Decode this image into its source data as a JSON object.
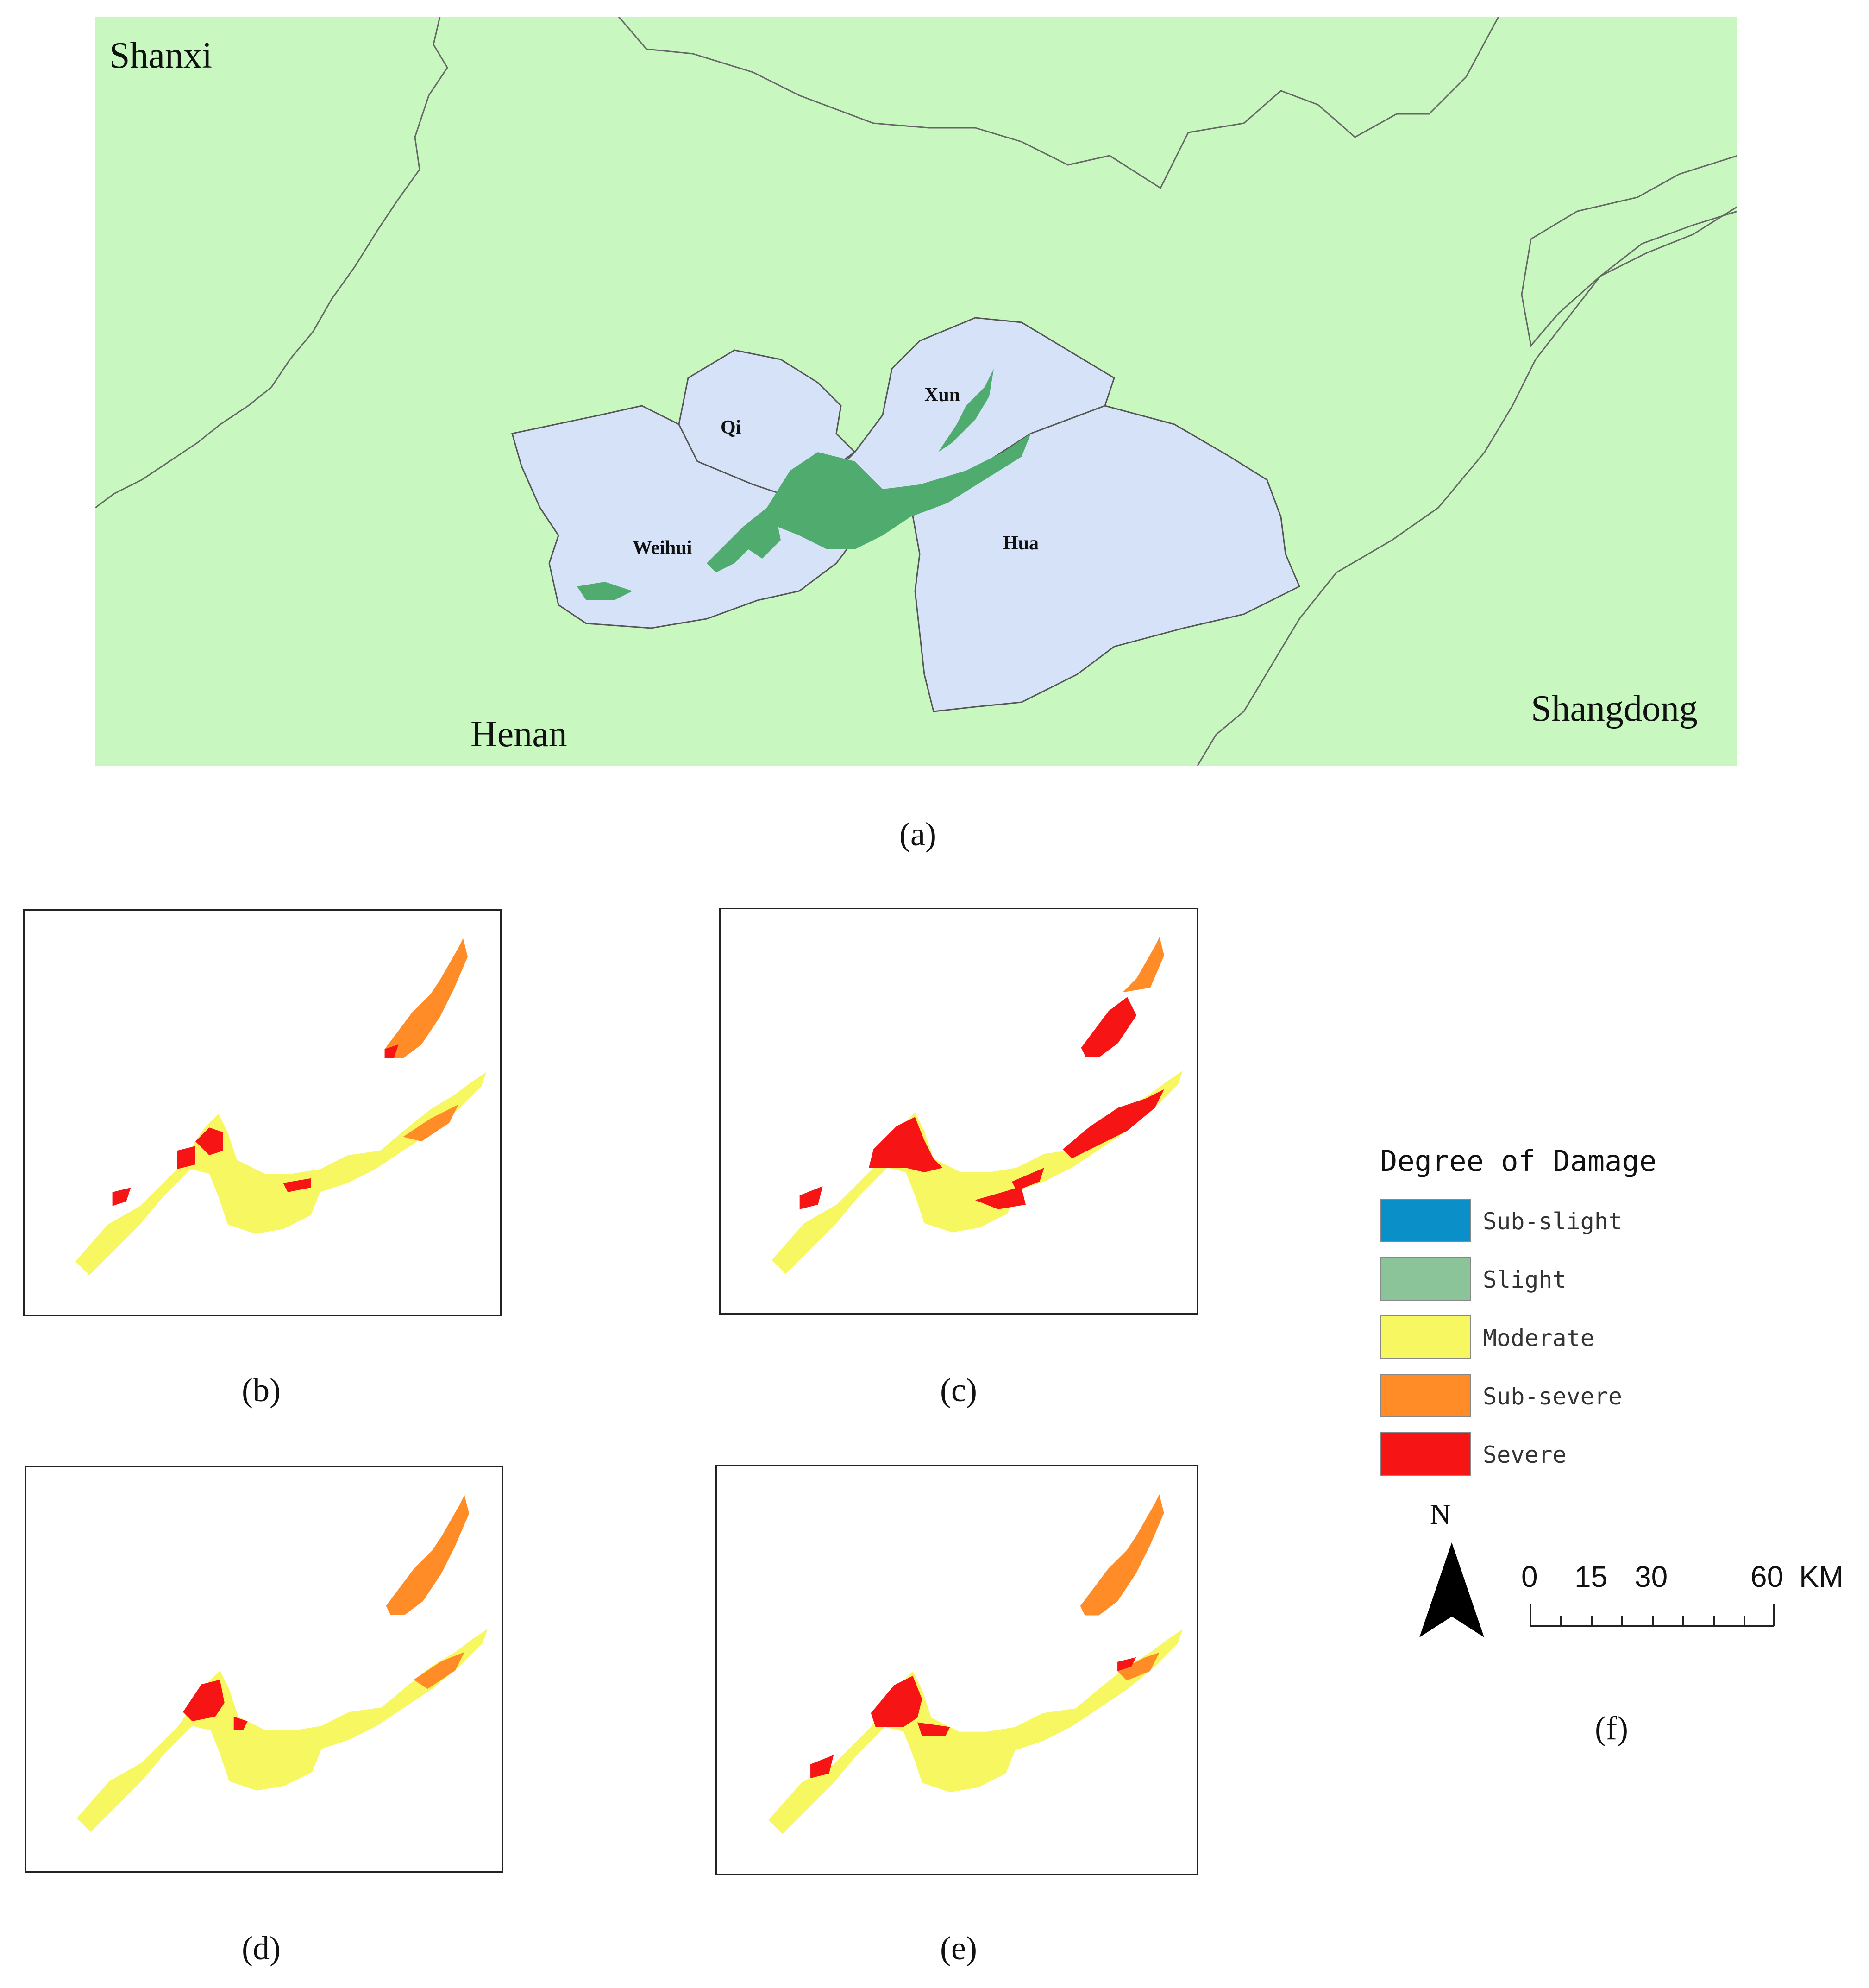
{
  "panel_a": {
    "caption": "(a)",
    "provinces": {
      "shanxi": "Shanxi",
      "henan": "Henan",
      "shangdong": "Shangdong"
    },
    "counties": {
      "qi": "Qi",
      "xun": "Xun",
      "weihui": "Weihui",
      "hua": "Hua"
    },
    "colors": {
      "background": "#c8f7c0",
      "counties": "#d6e2f7",
      "wetland": "#4fac6e"
    }
  },
  "captions": {
    "b": "(b)",
    "c": "(c)",
    "d": "(d)",
    "e": "(e)",
    "f": "(f)"
  },
  "legend": {
    "title": "Degree of Damage",
    "items": [
      {
        "label": "Sub-slight",
        "color": "#0a8fc8"
      },
      {
        "label": "Slight",
        "color": "#8cc49a"
      },
      {
        "label": "Moderate",
        "color": "#f7f762"
      },
      {
        "label": "Sub-severe",
        "color": "#ff8c26"
      },
      {
        "label": "Severe",
        "color": "#f71414"
      }
    ]
  },
  "north_arrow": {
    "label": "N"
  },
  "scale_bar": {
    "ticks": [
      "0",
      "15",
      "30",
      "60"
    ],
    "unit": "KM"
  }
}
